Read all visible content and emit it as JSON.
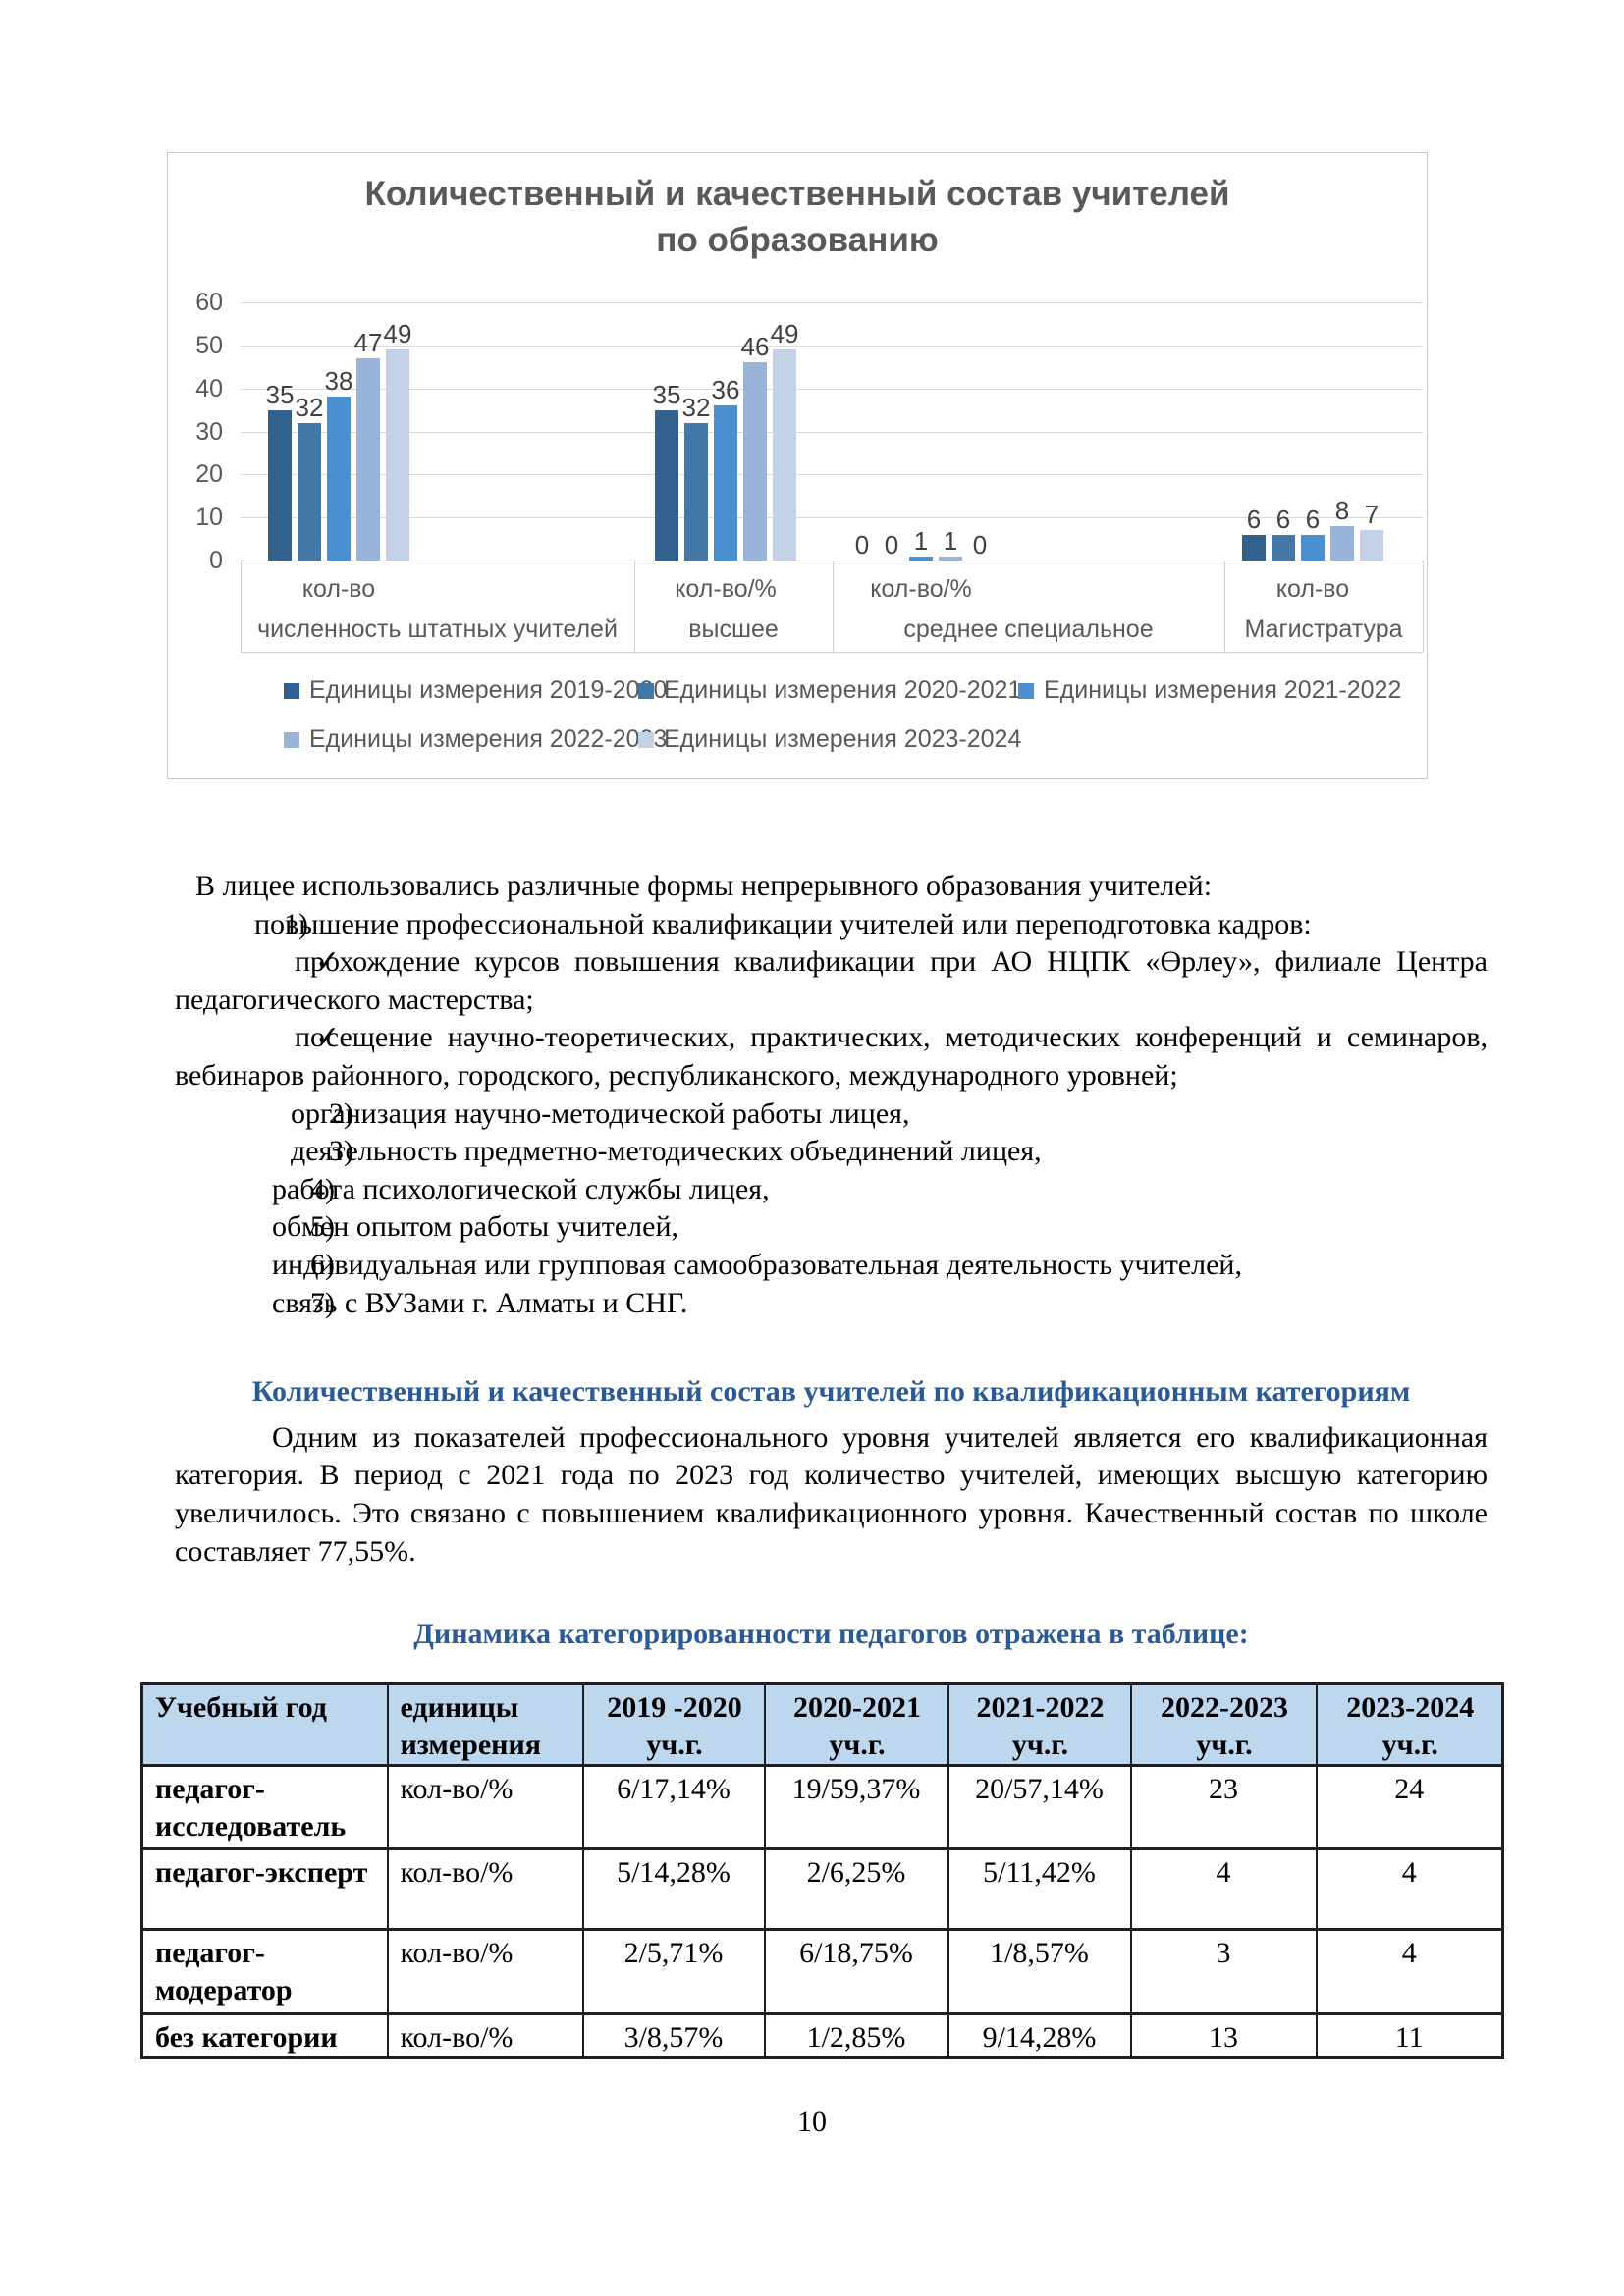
{
  "page": {
    "number": "10"
  },
  "colors": {
    "heading_blue": "#2a5a96",
    "table_header_bg": "#bdd7ee",
    "chart_text_gray": "#595959"
  },
  "chart_data": {
    "type": "bar",
    "title": "Количественный и качественный состав учителей по образованию",
    "ylim": [
      0,
      60
    ],
    "ytick_step": 10,
    "grid": true,
    "legend_position": "bottom",
    "categories": [
      {
        "axis_label": "кол-во",
        "group_label": "численность штатных учителей"
      },
      {
        "axis_label": "кол-во/%",
        "group_label": "высшее"
      },
      {
        "axis_label": "кол-во/%",
        "group_label": "среднее специальное"
      },
      {
        "axis_label": "кол-во",
        "group_label": "Магистратура"
      }
    ],
    "series": [
      {
        "name": "Единицы измерения 2019-2020",
        "color": "#32618d",
        "values": [
          35,
          35,
          0,
          6
        ]
      },
      {
        "name": "Единицы измерения 2020-2021",
        "color": "#4377a5",
        "values": [
          32,
          32,
          0,
          6
        ]
      },
      {
        "name": "Единицы измерения 2021-2022",
        "color": "#4a90d0",
        "values": [
          38,
          36,
          1,
          6
        ]
      },
      {
        "name": "Единицы измерения 2022-2023",
        "color": "#99b4d9",
        "values": [
          47,
          46,
          1,
          8
        ]
      },
      {
        "name": "Единицы измерения 2023-2024",
        "color": "#c3d2e8",
        "values": [
          49,
          49,
          0,
          7
        ]
      }
    ]
  },
  "body": {
    "intro": "В лицее использовались различные формы непрерывного образования учителей:",
    "list": [
      {
        "marker": "1)",
        "style": "num1",
        "text": "повышение профессиональной квалификации учителей или переподготовка кадров:"
      },
      {
        "marker": "✓",
        "style": "check",
        "text": "прохождение курсов повышения квалификации при АО НЦПК «Өрлеу», филиале Центра педагогического мастерства;"
      },
      {
        "marker": "✓",
        "style": "check",
        "text": "посещение научно-теоретических, практических, методических конференций и семинаров, вебинаров районного, городского, республиканского, международного уровней;"
      },
      {
        "marker": "2)",
        "style": "num2",
        "text": "организация научно-методической работы лицея,"
      },
      {
        "marker": "3)",
        "style": "num2",
        "text": "деятельность предметно-методических объединений лицея,"
      },
      {
        "marker": "4)",
        "style": "num3",
        "text": "работа психологической службы лицея,"
      },
      {
        "marker": "5)",
        "style": "num3",
        "text": "обмен опытом работы учителей,"
      },
      {
        "marker": "6)",
        "style": "num3",
        "text": "индивидуальная или групповая самообразовательная деятельность учителей,"
      },
      {
        "marker": "7)",
        "style": "num3",
        "text": "связь с ВУЗами г. Алматы и СНГ."
      }
    ],
    "heading_categories": "Количественный и качественный состав учителей по квалификационным категориям",
    "paragraph": "Одним из показателей профессионального уровня учителей является его квалификационная категория. В период с 2021 года по 2023 год количество учителей, имеющих высшую категорию увеличилось. Это связано с повышением квалификационного уровня. Качественный состав по школе составляет 77,55%.",
    "table_heading": "Динамика категорированности педагогов отражена в таблице:"
  },
  "table": {
    "headers": [
      "Учебный год",
      "единицы измерения",
      "2019 -2020 уч.г.",
      "2020-2021 уч.г.",
      "2021-2022 уч.г.",
      "2022-2023 уч.г.",
      "2023-2024 уч.г."
    ],
    "rows": [
      {
        "category": "педагог-исследователь",
        "unit": "кол-во/%",
        "values": [
          "6/17,14%",
          "19/59,37%",
          "20/57,14%",
          "23",
          "24"
        ]
      },
      {
        "category": "педагог-эксперт",
        "unit": "кол-во/%",
        "values": [
          "5/14,28%",
          "2/6,25%",
          "5/11,42%",
          "4",
          "4"
        ]
      },
      {
        "category": "педагог-модератор",
        "unit": "кол-во/%",
        "values": [
          "2/5,71%",
          "6/18,75%",
          "1/8,57%",
          "3",
          "4"
        ]
      },
      {
        "category": "без категории",
        "unit": "кол-во/%",
        "values": [
          "3/8,57%",
          "1/2,85%",
          "9/14,28%",
          "13",
          "11"
        ]
      }
    ]
  }
}
